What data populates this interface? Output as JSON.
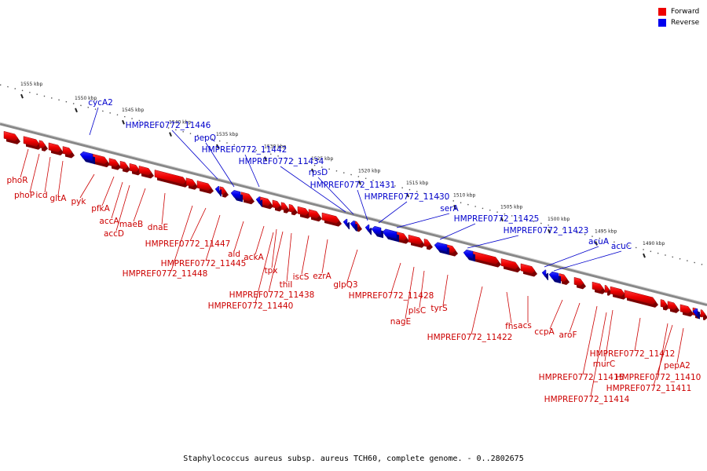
{
  "legend": {
    "forward": {
      "label": "Forward",
      "color": "#ee0000"
    },
    "reverse": {
      "label": "Reverse",
      "color": "#0000ee"
    }
  },
  "caption": "Staphylococcus aureus subsp. aureus TCH60, complete genome. - 0..2802675",
  "colors": {
    "backbone": "#888888",
    "ruler": "#222222",
    "forward_label": "#cc0000",
    "reverse_label": "#0000cc"
  },
  "ruler": {
    "ticks": [
      "1555 kbp",
      "1550 kbp",
      "1545 kbp",
      "1540 kbp",
      "1535 kbp",
      "1530 kbp",
      "1525 kbp",
      "1520 kbp",
      "1515 kbp",
      "1510 kbp",
      "1505 kbp",
      "1500 kbp",
      "1495 kbp",
      "1490 kbp"
    ]
  },
  "reverse_genes": [
    "cycA2",
    "HMPREF0772_11446",
    "pepQ",
    "HMPREF0772_11442",
    "HMPREF0772_11434",
    "rpsD",
    "HMPREF0772_11431",
    "HMPREF0772_11430",
    "serA",
    "HMPREF0772_11425",
    "HMPREF0772_11423",
    "acuA",
    "acuC"
  ],
  "forward_genes": [
    "phoR",
    "phoP",
    "icd",
    "gltA",
    "pyk",
    "pfkA",
    "accA",
    "accD",
    "maeB",
    "dnaE",
    "HMPREF0772_11448",
    "HMPREF0772_11447",
    "HMPREF0772_11445",
    "ald",
    "ackA",
    "tpx",
    "HMPREF0772_11438",
    "HMPREF0772_11440",
    "thiI",
    "iscS",
    "ezrA",
    "glpQ3",
    "HMPREF0772_11428",
    "nagE",
    "plsC",
    "tyrS",
    "HMPREF0772_11422",
    "fhs",
    "acs",
    "ccpA",
    "aroF",
    "murC",
    "HMPREF0772_11415",
    "HMPREF0772_11414",
    "HMPREF0772_11412",
    "HMPREF0772_11410",
    "HMPREF0772_11411",
    "pepA2"
  ]
}
